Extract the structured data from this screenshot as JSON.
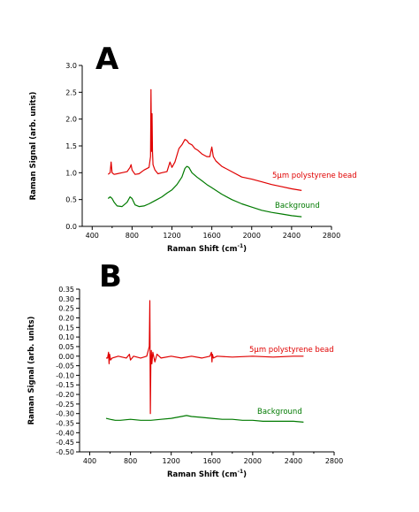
{
  "colors": {
    "bead": "#e00000",
    "background": "#007a00",
    "axis": "#000000"
  },
  "chart_data": [
    {
      "type": "line",
      "panel_label": "A",
      "xlabel": "Raman Shift (cm",
      "xlabel_sup": "-1",
      "xlabel_end": ")",
      "ylabel": "Raman Signal (arb. units)",
      "xlim": [
        300,
        2800
      ],
      "ylim": [
        0.0,
        3.0
      ],
      "xticks": [
        "400",
        "800",
        "1200",
        "1600",
        "2000",
        "2400",
        "2800"
      ],
      "yticks": [
        "0.0",
        "0.5",
        "1.0",
        "1.5",
        "2.0",
        "2.5",
        "3.0"
      ],
      "grid": false,
      "series": [
        {
          "name": "5µm polystyrene bead",
          "color": "#e00000",
          "x": [
            560,
            580,
            590,
            600,
            620,
            650,
            700,
            750,
            780,
            790,
            800,
            830,
            870,
            920,
            970,
            985,
            990,
            995,
            1000,
            1005,
            1010,
            1020,
            1030,
            1060,
            1100,
            1150,
            1180,
            1200,
            1230,
            1270,
            1300,
            1330,
            1350,
            1370,
            1400,
            1430,
            1460,
            1500,
            1550,
            1580,
            1600,
            1615,
            1640,
            1700,
            1800,
            1900,
            2000,
            2100,
            2200,
            2300,
            2400,
            2500
          ],
          "y": [
            0.97,
            1.0,
            1.2,
            1.0,
            0.97,
            0.98,
            1.0,
            1.02,
            1.1,
            1.15,
            1.05,
            0.97,
            0.98,
            1.05,
            1.1,
            1.3,
            2.55,
            1.4,
            2.1,
            1.4,
            1.15,
            1.1,
            1.05,
            0.98,
            1.0,
            1.02,
            1.2,
            1.1,
            1.2,
            1.45,
            1.52,
            1.62,
            1.6,
            1.55,
            1.52,
            1.45,
            1.42,
            1.35,
            1.3,
            1.3,
            1.48,
            1.3,
            1.22,
            1.12,
            1.02,
            0.92,
            0.88,
            0.83,
            0.78,
            0.74,
            0.7,
            0.67
          ]
        },
        {
          "name": "Background",
          "color": "#007a00",
          "x": [
            560,
            580,
            600,
            620,
            650,
            700,
            750,
            780,
            800,
            830,
            870,
            920,
            970,
            1000,
            1050,
            1100,
            1150,
            1200,
            1250,
            1300,
            1330,
            1350,
            1370,
            1400,
            1450,
            1500,
            1550,
            1600,
            1700,
            1800,
            1900,
            2000,
            2100,
            2200,
            2300,
            2400,
            2500
          ],
          "y": [
            0.52,
            0.55,
            0.52,
            0.45,
            0.38,
            0.37,
            0.45,
            0.55,
            0.52,
            0.4,
            0.37,
            0.38,
            0.42,
            0.45,
            0.5,
            0.55,
            0.62,
            0.68,
            0.78,
            0.92,
            1.08,
            1.12,
            1.1,
            1.0,
            0.92,
            0.85,
            0.78,
            0.72,
            0.6,
            0.5,
            0.42,
            0.36,
            0.3,
            0.26,
            0.23,
            0.2,
            0.18
          ]
        }
      ]
    },
    {
      "type": "line",
      "panel_label": "B",
      "xlabel": "Raman Shift (cm",
      "xlabel_sup": "-1",
      "xlabel_end": ")",
      "ylabel": "Raman Signal (arb. units)",
      "xlim": [
        300,
        2800
      ],
      "ylim": [
        -0.5,
        0.35
      ],
      "xticks": [
        "400",
        "800",
        "1200",
        "1600",
        "2000",
        "2400",
        "2800"
      ],
      "yticks": [
        "0.35",
        "0.30",
        "0.25",
        "0.20",
        "0.15",
        "0.10",
        "0.05",
        "0.00",
        "-0.05",
        "-0.10",
        "-0.15",
        "-0.20",
        "-0.25",
        "-0.30",
        "-0.35",
        "-0.40",
        "-0.45",
        "-0.50"
      ],
      "grid": false,
      "series": [
        {
          "name": "5µm polystyrene bead",
          "color": "#e00000",
          "x": [
            560,
            575,
            585,
            590,
            595,
            605,
            620,
            680,
            760,
            790,
            800,
            830,
            900,
            960,
            985,
            990,
            995,
            1000,
            1005,
            1010,
            1020,
            1040,
            1060,
            1100,
            1200,
            1300,
            1400,
            1500,
            1580,
            1595,
            1600,
            1605,
            1615,
            1650,
            1800,
            2000,
            2200,
            2400,
            2500
          ],
          "y": [
            -0.01,
            -0.01,
            0.02,
            -0.04,
            0.01,
            -0.02,
            -0.01,
            0.0,
            -0.01,
            0.01,
            -0.02,
            0.0,
            -0.01,
            0.0,
            0.05,
            0.29,
            -0.3,
            -0.05,
            0.03,
            -0.04,
            0.02,
            -0.03,
            0.01,
            -0.01,
            0.0,
            -0.01,
            0.0,
            -0.01,
            0.0,
            0.02,
            -0.03,
            0.01,
            -0.01,
            0.0,
            -0.005,
            0.0,
            -0.005,
            0.0,
            0.0
          ]
        },
        {
          "name": "Background",
          "color": "#007a00",
          "x": [
            560,
            600,
            650,
            700,
            800,
            900,
            1000,
            1100,
            1200,
            1300,
            1350,
            1400,
            1500,
            1600,
            1700,
            1800,
            1900,
            2000,
            2100,
            2200,
            2300,
            2400,
            2500
          ],
          "y": [
            -0.325,
            -0.33,
            -0.335,
            -0.335,
            -0.33,
            -0.335,
            -0.335,
            -0.33,
            -0.325,
            -0.315,
            -0.31,
            -0.315,
            -0.32,
            -0.325,
            -0.33,
            -0.33,
            -0.335,
            -0.335,
            -0.34,
            -0.34,
            -0.34,
            -0.34,
            -0.345
          ]
        }
      ]
    }
  ]
}
